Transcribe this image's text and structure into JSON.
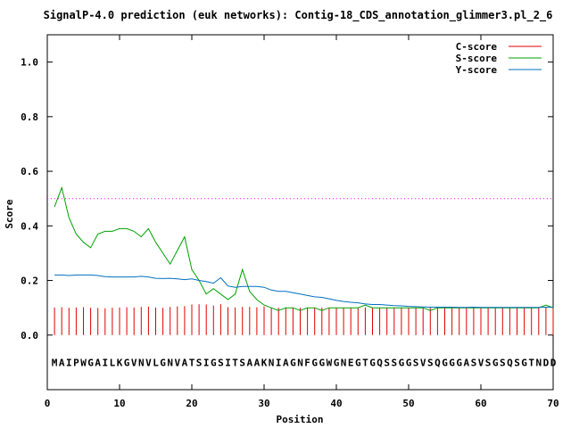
{
  "chart_data": {
    "type": "line",
    "title": "SignalP-4.0 prediction (euk networks): Contig-18_CDS_annotation_glimmer3.pl_2_6",
    "xlabel": "Position",
    "ylabel": "Score",
    "xlim": [
      0,
      70
    ],
    "ylim": [
      -0.2,
      1.1
    ],
    "x_ticks": [
      0,
      10,
      20,
      30,
      40,
      50,
      60,
      70
    ],
    "y_ticks": [
      0.0,
      0.2,
      0.4,
      0.6,
      0.8,
      1.0
    ],
    "x_tick_labels": [
      "0",
      "10",
      "20",
      "30",
      "40",
      "50",
      "60",
      "70"
    ],
    "y_tick_labels": [
      "0.0",
      "0.2",
      "0.4",
      "0.6",
      "0.8",
      "1.0"
    ],
    "threshold": 0.5,
    "threshold_color": "#ff00ff",
    "legend_position": "top-right",
    "sequence": "MAIPWGAILKGVNVLGNVATSIGSITSAAKNIAGNFGGWGNEGTGQSSGGSVSQGGGASVSGSQSGTNDD",
    "series": [
      {
        "name": "C-score",
        "style": "impulses",
        "color": "#e00000",
        "values": [
          0.101,
          0.102,
          0.1,
          0.101,
          0.102,
          0.1,
          0.099,
          0.098,
          0.1,
          0.101,
          0.102,
          0.101,
          0.103,
          0.104,
          0.101,
          0.1,
          0.103,
          0.105,
          0.106,
          0.112,
          0.113,
          0.112,
          0.108,
          0.113,
          0.102,
          0.101,
          0.103,
          0.103,
          0.102,
          0.105,
          0.101,
          0.1,
          0.101,
          0.101,
          0.1,
          0.101,
          0.101,
          0.101,
          0.1,
          0.101,
          0.1,
          0.101,
          0.1,
          0.101,
          0.1,
          0.1,
          0.101,
          0.1,
          0.101,
          0.1,
          0.101,
          0.1,
          0.1,
          0.101,
          0.1,
          0.101,
          0.1,
          0.1,
          0.101,
          0.1,
          0.101,
          0.1,
          0.101,
          0.1,
          0.101,
          0.1,
          0.101,
          0.102,
          0.102,
          0.101
        ]
      },
      {
        "name": "S-score",
        "style": "line",
        "color": "#00a000",
        "values": [
          0.47,
          0.54,
          0.43,
          0.37,
          0.34,
          0.32,
          0.37,
          0.38,
          0.38,
          0.39,
          0.39,
          0.38,
          0.36,
          0.39,
          0.34,
          0.3,
          0.26,
          0.31,
          0.36,
          0.24,
          0.2,
          0.15,
          0.17,
          0.15,
          0.13,
          0.15,
          0.24,
          0.16,
          0.13,
          0.11,
          0.1,
          0.09,
          0.1,
          0.1,
          0.09,
          0.1,
          0.1,
          0.09,
          0.1,
          0.1,
          0.1,
          0.1,
          0.1,
          0.11,
          0.1,
          0.1,
          0.1,
          0.1,
          0.1,
          0.1,
          0.1,
          0.1,
          0.09,
          0.1,
          0.1,
          0.1,
          0.1,
          0.1,
          0.1,
          0.1,
          0.1,
          0.1,
          0.1,
          0.1,
          0.1,
          0.1,
          0.1,
          0.1,
          0.11,
          0.1
        ]
      },
      {
        "name": "Y-score",
        "style": "line",
        "color": "#0070c0",
        "values": [
          0.22,
          0.22,
          0.218,
          0.22,
          0.22,
          0.22,
          0.218,
          0.214,
          0.213,
          0.213,
          0.213,
          0.213,
          0.215,
          0.213,
          0.208,
          0.207,
          0.208,
          0.206,
          0.203,
          0.206,
          0.2,
          0.196,
          0.19,
          0.21,
          0.18,
          0.175,
          0.178,
          0.178,
          0.178,
          0.175,
          0.165,
          0.16,
          0.16,
          0.155,
          0.15,
          0.145,
          0.14,
          0.138,
          0.133,
          0.127,
          0.123,
          0.12,
          0.118,
          0.114,
          0.112,
          0.112,
          0.11,
          0.108,
          0.107,
          0.105,
          0.104,
          0.103,
          0.102,
          0.102,
          0.102,
          0.102,
          0.101,
          0.101,
          0.102,
          0.101,
          0.101,
          0.101,
          0.101,
          0.101,
          0.101,
          0.101,
          0.101,
          0.101,
          0.102,
          0.101
        ]
      }
    ]
  }
}
